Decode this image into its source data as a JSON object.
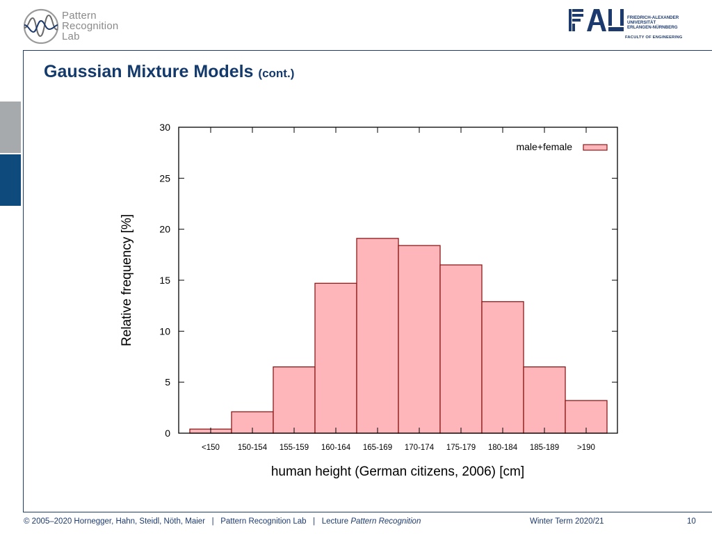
{
  "header": {
    "lab_name_lines": [
      "Pattern",
      "Recognition",
      "Lab"
    ],
    "fau_lines": [
      "FRIEDRICH-ALEXANDER",
      "UNIVERSITÄT",
      "ERLANGEN-NÜRNBERG"
    ],
    "fau_faculty": "FACULTY OF ENGINEERING"
  },
  "slide": {
    "title": "Gaussian Mixture Models",
    "title_suffix": "(cont.)"
  },
  "chart_data": {
    "type": "bar",
    "categories": [
      "<150",
      "150-154",
      "155-159",
      "160-164",
      "165-169",
      "170-174",
      "175-179",
      "180-184",
      "185-189",
      ">190"
    ],
    "series": [
      {
        "name": "male+female",
        "values": [
          0.4,
          2.1,
          6.5,
          14.7,
          19.1,
          18.4,
          16.5,
          12.9,
          6.5,
          3.2
        ]
      }
    ],
    "xlabel": "human height (German citizens, 2006) [cm]",
    "ylabel": "Relative frequency [%]",
    "ylim": [
      0,
      30
    ],
    "yticks": [
      0,
      5,
      10,
      15,
      20,
      25,
      30
    ],
    "legend_position": "top-right",
    "grid": false,
    "bar_color": "#ffb6bb",
    "bar_edge_color": "#8b1a1a"
  },
  "footer": {
    "copyright": "© 2005–2020 Hornegger, Hahn, Steidl, Nöth, Maier",
    "sep": "|",
    "lab": "Pattern Recognition Lab",
    "lecture_prefix": "Lecture",
    "lecture_name": "Pattern Recognition",
    "term": "Winter Term 2020/21",
    "page": "10"
  }
}
